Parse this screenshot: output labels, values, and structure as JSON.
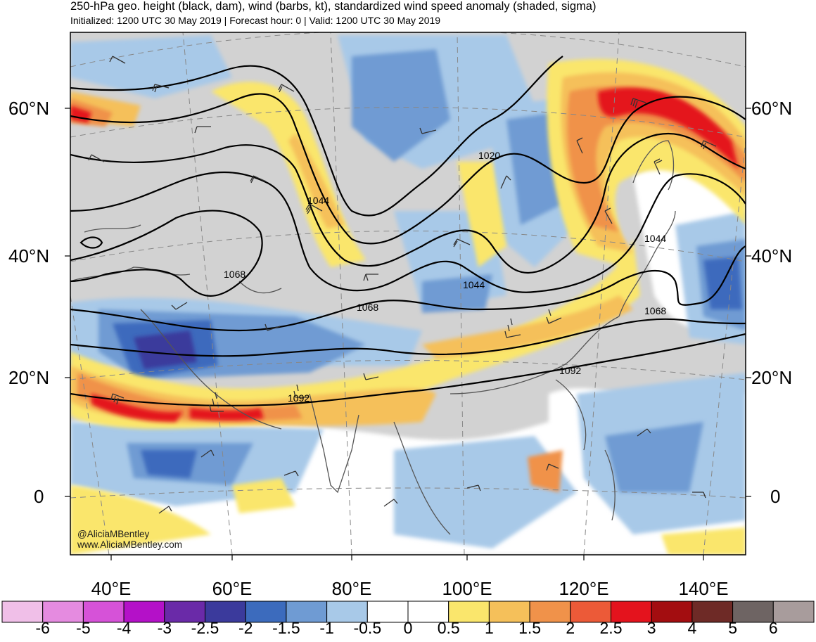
{
  "title": "250-hPa geo. height (black, dam), wind (barbs, kt), standardized wind speed anomaly (shaded, sigma)",
  "subtitle": "Initialized: 1200 UTC 30 May 2019 | Forecast hour: 0 | Valid: 1200 UTC 30 May 2019",
  "lat_labels": [
    "60°N",
    "40°N",
    "20°N",
    "0"
  ],
  "lon_labels": [
    "40°E",
    "60°E",
    "80°E",
    "100°E",
    "120°E",
    "140°E"
  ],
  "contour_labels": [
    "1020",
    "1044",
    "1044",
    "1044",
    "1068",
    "1068",
    "1068",
    "1092",
    "1092"
  ],
  "colorbar": {
    "labels": [
      "-6",
      "-5",
      "-4",
      "-3",
      "-2.5",
      "-2",
      "-1.5",
      "-1",
      "-0.5",
      "0",
      "0.5",
      "1",
      "1.5",
      "2",
      "2.5",
      "3",
      "4",
      "5",
      "6"
    ],
    "colors": [
      "#f0bfe8",
      "#e58be0",
      "#d652d8",
      "#b411c8",
      "#6a2aa8",
      "#3b3a9c",
      "#3c6bbd",
      "#6f9bd3",
      "#a8c9e8",
      "#ffffff",
      "#ffffff",
      "#fae66c",
      "#f5c05a",
      "#f0924a",
      "#ec5a38",
      "#e4131d",
      "#a30d10",
      "#6e2a26",
      "#6e6463",
      "#a89c9c"
    ]
  },
  "credits": {
    "handle": "@AliciaMBentley",
    "website": "www.AliciaMBentley.com"
  }
}
